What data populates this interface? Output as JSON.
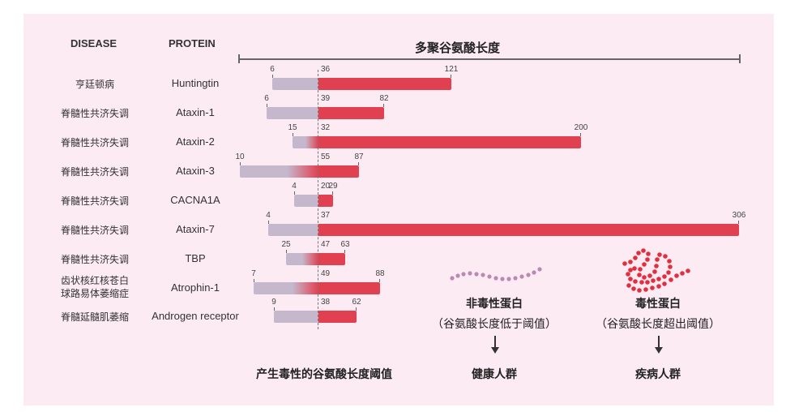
{
  "headers": {
    "disease": "DISEASE",
    "protein": "PROTEIN"
  },
  "axis_title": "多聚谷氨酸长度",
  "threshold_caption": "产生毒性的谷氨酸长度阈值",
  "nontoxic": {
    "title": "非毒性蛋白",
    "subtitle": "（谷氨酸长度低于阈值）",
    "outcome": "健康人群",
    "color": "#b98bb3"
  },
  "toxic": {
    "title": "毒性蛋白",
    "subtitle": "（谷氨酸长度超出阈值）",
    "outcome": "疾病人群",
    "color": "#e0303f"
  },
  "colors": {
    "background": "#fdebf3",
    "normal_bar": "#c5b8cd",
    "pathogenic_bar": "#e14050"
  },
  "rows": [
    {
      "disease": "亨廷顿病",
      "protein": "Huntingtin",
      "min": "6",
      "threshold": "36",
      "max": "121"
    },
    {
      "disease": "脊髓性共济失调",
      "protein": "Ataxin-1",
      "min": "6",
      "threshold": "39",
      "max": "82"
    },
    {
      "disease": "脊髓性共济失调",
      "protein": "Ataxin-2",
      "min": "15",
      "threshold": "32",
      "max": "200"
    },
    {
      "disease": "脊髓性共济失调",
      "protein": "Ataxin-3",
      "min": "10",
      "threshold": "55",
      "max": "87"
    },
    {
      "disease": "脊髓性共济失调",
      "protein": "CACNA1A",
      "min": "4",
      "threshold": "20",
      "max": "29"
    },
    {
      "disease": "脊髓性共济失调",
      "protein": "Ataxin-7",
      "min": "4",
      "threshold": "37",
      "max": "306"
    },
    {
      "disease": "脊髓性共济失调",
      "protein": "TBP",
      "min": "25",
      "threshold": "47",
      "max": "63"
    },
    {
      "disease": "齿状核红核苍白球路易体萎缩症",
      "disease_line1": "齿状核红核苍白",
      "disease_line2": "球路易体萎缩症",
      "protein": "Atrophin-1",
      "min": "7",
      "threshold": "49",
      "max": "88"
    },
    {
      "disease": "脊髓延髓肌萎缩",
      "protein": "Androgen receptor",
      "min": "9",
      "threshold": "38",
      "max": "62"
    }
  ],
  "chart_data": {
    "type": "bar",
    "title": "多聚谷氨酸长度",
    "xlabel": "多聚谷氨酸长度",
    "ylabel": "",
    "categories": [
      "Huntingtin",
      "Ataxin-1",
      "Ataxin-2",
      "Ataxin-3",
      "CACNA1A",
      "Ataxin-7",
      "TBP",
      "Atrophin-1",
      "Androgen receptor"
    ],
    "diseases": [
      "亨廷顿病",
      "脊髓性共济失调",
      "脊髓性共济失调",
      "脊髓性共济失调",
      "脊髓性共济失调",
      "脊髓性共济失调",
      "脊髓性共济失调",
      "齿状核红核苍白球路易体萎缩症",
      "脊髓延髓肌萎缩"
    ],
    "series": [
      {
        "name": "normal_min",
        "values": [
          6,
          6,
          15,
          10,
          4,
          4,
          25,
          7,
          9
        ]
      },
      {
        "name": "toxic_threshold",
        "values": [
          36,
          39,
          32,
          55,
          20,
          37,
          47,
          49,
          38
        ]
      },
      {
        "name": "pathogenic_max",
        "values": [
          121,
          82,
          200,
          87,
          29,
          306,
          63,
          88,
          62
        ]
      }
    ],
    "annotations": [
      "产生毒性的谷氨酸长度阈值",
      "非毒性蛋白（谷氨酸长度低于阈值）→ 健康人群",
      "毒性蛋白（谷氨酸长度超出阈值）→ 疾病人群"
    ],
    "grid": false,
    "legend": "none"
  }
}
